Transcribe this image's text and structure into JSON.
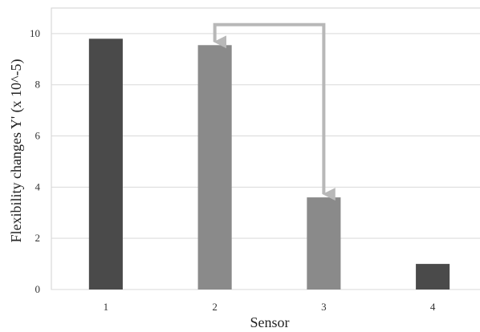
{
  "chart_data": {
    "type": "bar",
    "categories": [
      "1",
      "2",
      "3",
      "4"
    ],
    "values": [
      9.8,
      9.55,
      3.6,
      1.0
    ],
    "bar_colors": [
      "#4a4a4a",
      "#8a8a8a",
      "#8a8a8a",
      "#4a4a4a"
    ],
    "xlabel": "Sensor",
    "ylabel": "Flexibility changes Y' (x 10^-5)",
    "ylim": [
      0,
      11
    ],
    "yticks": [
      0,
      2,
      4,
      6,
      8,
      10
    ],
    "grid": true,
    "annotation": {
      "type": "bracket-arrows",
      "between_categories": [
        "2",
        "3"
      ],
      "at_value": 10.35,
      "color": "#b8b8b8"
    }
  }
}
